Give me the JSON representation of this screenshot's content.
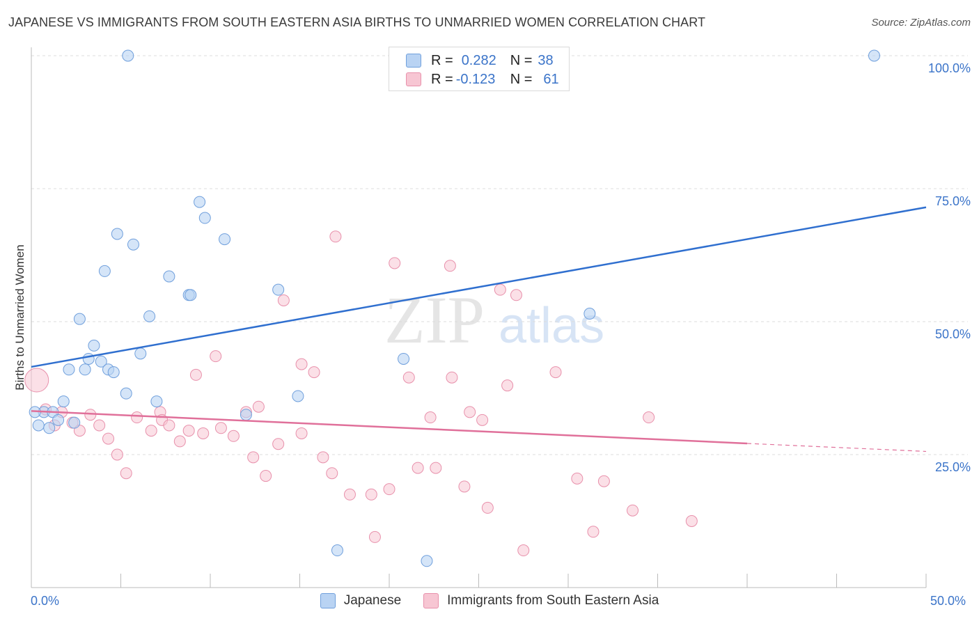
{
  "header": {
    "title": "JAPANESE VS IMMIGRANTS FROM SOUTH EASTERN ASIA BIRTHS TO UNMARRIED WOMEN CORRELATION CHART",
    "source": "Source: ZipAtlas.com"
  },
  "legend_box": {
    "rows": [
      {
        "r_label": "R =",
        "r_value": "0.282",
        "n_label": "N =",
        "n_value": "38"
      },
      {
        "r_label": "R =",
        "r_value": "-0.123",
        "n_label": "N =",
        "n_value": "61"
      }
    ]
  },
  "bottom_legend": {
    "series_a": "Japanese",
    "series_b": "Immigrants from South Eastern Asia"
  },
  "watermark": {
    "zip": "ZIP",
    "atlas": "atlas"
  },
  "colors": {
    "japanese_fill": "#b9d3f3",
    "japanese_stroke": "#6f9fdc",
    "japanese_line": "#2f6fcf",
    "immigrants_fill": "#f7c6d3",
    "immigrants_stroke": "#e890ab",
    "immigrants_line": "#e0709a",
    "tick_text": "#3b74c9"
  },
  "chart_data": {
    "type": "scatter",
    "title": "JAPANESE VS IMMIGRANTS FROM SOUTH EASTERN ASIA BIRTHS TO UNMARRIED WOMEN CORRELATION CHART",
    "xlabel": "",
    "ylabel": "Births to Unmarried Women",
    "xlim": [
      0,
      50
    ],
    "ylim": [
      0,
      102
    ],
    "x_tick_labels": [
      "0.0%",
      "50.0%"
    ],
    "y_tick_labels": [
      "25.0%",
      "50.0%",
      "75.0%",
      "100.0%"
    ],
    "y_ticks": [
      25,
      50,
      75,
      100
    ],
    "grid": true,
    "legend_placement": "top-center",
    "series": [
      {
        "name": "Japanese",
        "R": 0.282,
        "N": 38,
        "trend": {
          "x": [
            0,
            50
          ],
          "y": [
            41.5,
            71.5
          ]
        },
        "points": [
          {
            "x": 5.4,
            "y": 100
          },
          {
            "x": 47.1,
            "y": 100
          },
          {
            "x": 9.4,
            "y": 72.5
          },
          {
            "x": 9.7,
            "y": 69.5
          },
          {
            "x": 4.8,
            "y": 66.5
          },
          {
            "x": 10.8,
            "y": 65.5
          },
          {
            "x": 5.7,
            "y": 64.5
          },
          {
            "x": 4.1,
            "y": 59.5
          },
          {
            "x": 7.7,
            "y": 58.5
          },
          {
            "x": 8.8,
            "y": 55.0
          },
          {
            "x": 8.9,
            "y": 55.0
          },
          {
            "x": 13.8,
            "y": 56.0
          },
          {
            "x": 6.6,
            "y": 51.0
          },
          {
            "x": 2.7,
            "y": 50.5
          },
          {
            "x": 31.2,
            "y": 51.5
          },
          {
            "x": 3.5,
            "y": 45.5
          },
          {
            "x": 6.1,
            "y": 44.0
          },
          {
            "x": 3.2,
            "y": 43.0
          },
          {
            "x": 3.9,
            "y": 42.5
          },
          {
            "x": 20.8,
            "y": 43.0
          },
          {
            "x": 2.1,
            "y": 41.0
          },
          {
            "x": 3.0,
            "y": 41.0
          },
          {
            "x": 4.3,
            "y": 41.0
          },
          {
            "x": 4.6,
            "y": 40.5
          },
          {
            "x": 5.3,
            "y": 36.5
          },
          {
            "x": 7.0,
            "y": 35.0
          },
          {
            "x": 14.9,
            "y": 36.0
          },
          {
            "x": 1.8,
            "y": 35.0
          },
          {
            "x": 0.7,
            "y": 33.0
          },
          {
            "x": 1.2,
            "y": 33.0
          },
          {
            "x": 12.0,
            "y": 32.5
          },
          {
            "x": 1.5,
            "y": 31.5
          },
          {
            "x": 2.4,
            "y": 31.0
          },
          {
            "x": 0.4,
            "y": 30.5
          },
          {
            "x": 1.0,
            "y": 30.0
          },
          {
            "x": 0.2,
            "y": 33.0
          },
          {
            "x": 17.1,
            "y": 7.0
          },
          {
            "x": 22.1,
            "y": 5.0
          }
        ]
      },
      {
        "name": "Immigrants from South Eastern Asia",
        "R": -0.123,
        "N": 61,
        "trend": {
          "x": [
            0,
            40
          ],
          "y": [
            33.2,
            27.1
          ]
        },
        "trend_dashed": {
          "x": [
            40,
            50
          ],
          "y": [
            27.1,
            25.6
          ]
        },
        "points": [
          {
            "x": 0.3,
            "y": 39.0
          },
          {
            "x": 17.0,
            "y": 66.0
          },
          {
            "x": 20.3,
            "y": 61.0
          },
          {
            "x": 23.4,
            "y": 60.5
          },
          {
            "x": 26.2,
            "y": 56.0
          },
          {
            "x": 27.1,
            "y": 55.0
          },
          {
            "x": 14.1,
            "y": 54.0
          },
          {
            "x": 10.3,
            "y": 43.5
          },
          {
            "x": 15.1,
            "y": 42.0
          },
          {
            "x": 15.8,
            "y": 40.5
          },
          {
            "x": 9.2,
            "y": 40.0
          },
          {
            "x": 29.3,
            "y": 40.5
          },
          {
            "x": 21.1,
            "y": 39.5
          },
          {
            "x": 23.5,
            "y": 39.5
          },
          {
            "x": 26.6,
            "y": 38.0
          },
          {
            "x": 12.7,
            "y": 34.0
          },
          {
            "x": 12.0,
            "y": 33.0
          },
          {
            "x": 24.5,
            "y": 33.0
          },
          {
            "x": 7.2,
            "y": 33.0
          },
          {
            "x": 0.8,
            "y": 33.5
          },
          {
            "x": 1.7,
            "y": 33.0
          },
          {
            "x": 3.3,
            "y": 32.5
          },
          {
            "x": 5.9,
            "y": 32.0
          },
          {
            "x": 7.3,
            "y": 31.5
          },
          {
            "x": 22.3,
            "y": 32.0
          },
          {
            "x": 25.2,
            "y": 31.5
          },
          {
            "x": 34.5,
            "y": 32.0
          },
          {
            "x": 2.3,
            "y": 31.0
          },
          {
            "x": 3.8,
            "y": 30.5
          },
          {
            "x": 7.7,
            "y": 30.5
          },
          {
            "x": 10.6,
            "y": 30.0
          },
          {
            "x": 1.3,
            "y": 30.5
          },
          {
            "x": 2.7,
            "y": 29.5
          },
          {
            "x": 6.7,
            "y": 29.5
          },
          {
            "x": 8.8,
            "y": 29.5
          },
          {
            "x": 9.6,
            "y": 29.0
          },
          {
            "x": 11.3,
            "y": 28.5
          },
          {
            "x": 15.1,
            "y": 29.0
          },
          {
            "x": 4.3,
            "y": 28.0
          },
          {
            "x": 8.3,
            "y": 27.5
          },
          {
            "x": 13.8,
            "y": 27.0
          },
          {
            "x": 4.8,
            "y": 25.0
          },
          {
            "x": 12.4,
            "y": 24.5
          },
          {
            "x": 16.3,
            "y": 24.5
          },
          {
            "x": 21.6,
            "y": 22.5
          },
          {
            "x": 22.6,
            "y": 22.5
          },
          {
            "x": 5.3,
            "y": 21.5
          },
          {
            "x": 16.8,
            "y": 21.5
          },
          {
            "x": 13.1,
            "y": 21.0
          },
          {
            "x": 30.5,
            "y": 20.5
          },
          {
            "x": 32.0,
            "y": 20.0
          },
          {
            "x": 24.2,
            "y": 19.0
          },
          {
            "x": 20.0,
            "y": 18.5
          },
          {
            "x": 17.8,
            "y": 17.5
          },
          {
            "x": 19.0,
            "y": 17.5
          },
          {
            "x": 25.5,
            "y": 15.0
          },
          {
            "x": 33.6,
            "y": 14.5
          },
          {
            "x": 36.9,
            "y": 12.5
          },
          {
            "x": 31.4,
            "y": 10.5
          },
          {
            "x": 19.2,
            "y": 9.5
          },
          {
            "x": 27.5,
            "y": 7.0
          }
        ]
      }
    ]
  }
}
